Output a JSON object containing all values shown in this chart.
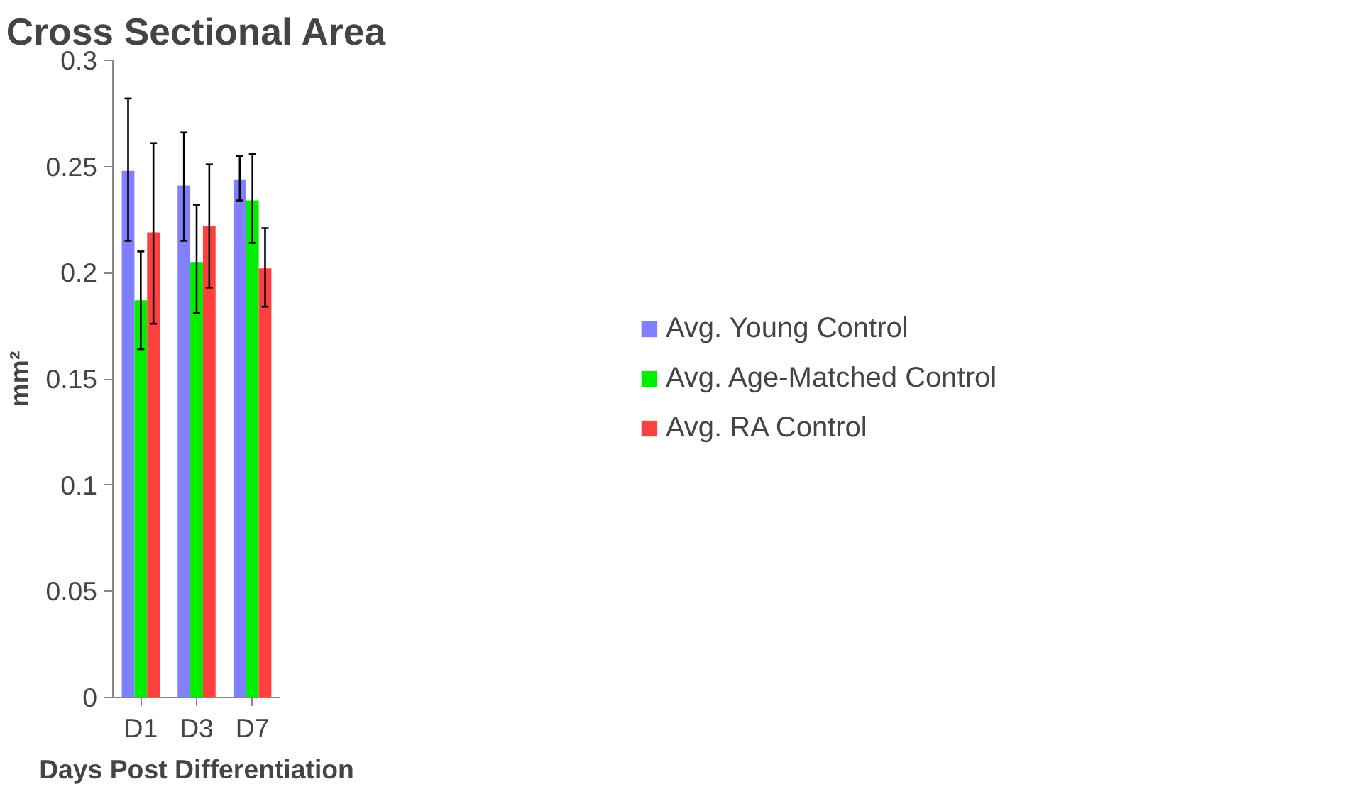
{
  "chart_data": {
    "type": "bar",
    "title": "Cross Sectional Area",
    "xlabel": "Days Post Differentiation",
    "ylabel": "mm²",
    "categories": [
      "D1",
      "D3",
      "D7"
    ],
    "series": [
      {
        "name": "Avg. Young Control",
        "color": "#8080ff",
        "values": [
          0.248,
          0.241,
          0.244
        ],
        "errors": [
          [
            0.215,
            0.282
          ],
          [
            0.215,
            0.266
          ],
          [
            0.234,
            0.255
          ]
        ]
      },
      {
        "name": "Avg. Age-Matched Control",
        "color": "#00ee00",
        "values": [
          0.187,
          0.205,
          0.234
        ],
        "errors": [
          [
            0.164,
            0.21
          ],
          [
            0.181,
            0.232
          ],
          [
            0.214,
            0.256
          ]
        ]
      },
      {
        "name": "Avg. RA Control",
        "color": "#ff4040",
        "values": [
          0.219,
          0.222,
          0.202
        ],
        "errors": [
          [
            0.176,
            0.261
          ],
          [
            0.193,
            0.251
          ],
          [
            0.184,
            0.221
          ]
        ]
      }
    ],
    "ylim": [
      0,
      0.3
    ],
    "yticks": [
      0,
      {
        "value": 0.05,
        "label": "0.05"
      },
      {
        "value": 0.1,
        "label": "0.1"
      },
      {
        "value": 0.15,
        "label": "0.15"
      },
      {
        "value": 0.2,
        "label": "0.2"
      },
      {
        "value": 0.25,
        "label": "0.25"
      },
      {
        "value": 0.3,
        "label": "0.3"
      }
    ],
    "grid": false,
    "legend": "right"
  }
}
